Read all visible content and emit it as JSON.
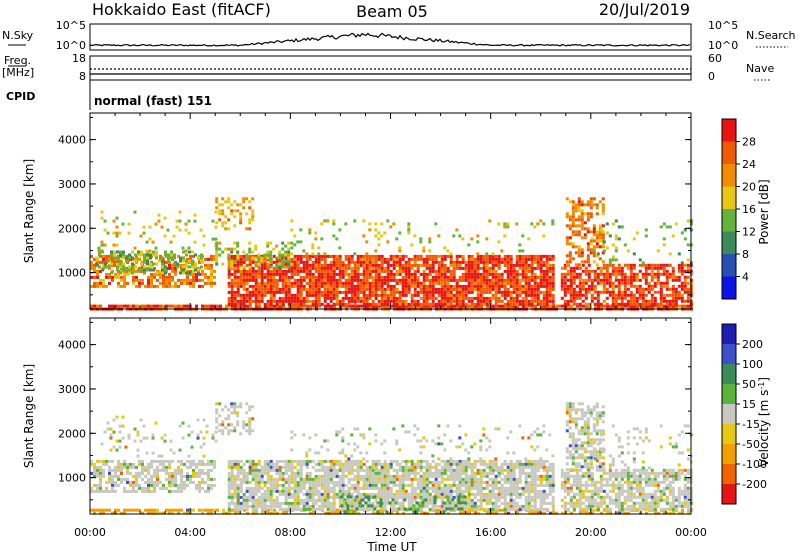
{
  "header": {
    "station": "Hokkaido East (fitACF)",
    "beam": "Beam 05",
    "date": "20/Jul/2019"
  },
  "noise_panel": {
    "left_label": "N.Sky",
    "right_label": "N.Search",
    "left_ticks": [
      "10^5",
      "10^0"
    ],
    "right_ticks": [
      "10^5",
      "10^0"
    ]
  },
  "freq_panel": {
    "left_label_line1": "Freq.",
    "left_label_line2": "[MHz]",
    "right_label": "Nave",
    "left_ticks": [
      "18",
      "8"
    ],
    "right_ticks": [
      "60",
      "0"
    ]
  },
  "cpid_panel": {
    "label": "CPID",
    "mode_text": "normal (fast) 151"
  },
  "x_axis": {
    "title": "Time UT",
    "ticks": [
      "00:00",
      "04:00",
      "08:00",
      "12:00",
      "16:00",
      "20:00",
      "00:00"
    ]
  },
  "chart_data": [
    {
      "type": "heatmap",
      "name": "power",
      "ylabel": "Slant Range [km]",
      "yticks": [
        "1000",
        "2000",
        "3000",
        "4000"
      ],
      "ylim": [
        180,
        4600
      ],
      "xlim": [
        0,
        24
      ],
      "colorbar_title": "Power [dB]",
      "colorbar_ticks": [
        "4",
        "8",
        "12",
        "16",
        "20",
        "24",
        "28"
      ],
      "colorbar_colors": [
        "#0a14e6",
        "#2850b4",
        "#3c8c5a",
        "#64b43c",
        "#e6c814",
        "#f08c00",
        "#f05a00",
        "#e61414"
      ],
      "regions": [
        {
          "t0": 0.0,
          "t1": 24.0,
          "r0": 180,
          "r1": 280,
          "v": 28,
          "d": 0.9
        },
        {
          "t0": 0.0,
          "t1": 5.0,
          "r0": 700,
          "r1": 1400,
          "v": 24,
          "d": 0.6
        },
        {
          "t0": 0.2,
          "t1": 4.5,
          "r0": 1000,
          "r1": 1500,
          "v": 14,
          "d": 0.5
        },
        {
          "t0": 0.3,
          "t1": 5.0,
          "r0": 1500,
          "r1": 2400,
          "v": 17,
          "d": 0.12
        },
        {
          "t0": 5.5,
          "t1": 18.5,
          "r0": 250,
          "r1": 1400,
          "v": 28,
          "d": 0.85
        },
        {
          "t0": 5.0,
          "t1": 8.0,
          "r0": 1100,
          "r1": 1700,
          "v": 16,
          "d": 0.35
        },
        {
          "t0": 8.0,
          "t1": 18.5,
          "r0": 1400,
          "r1": 2200,
          "v": 17,
          "d": 0.12
        },
        {
          "t0": 5.0,
          "t1": 6.5,
          "r0": 2000,
          "r1": 2700,
          "v": 21,
          "d": 0.4
        },
        {
          "t0": 18.8,
          "t1": 24.0,
          "r0": 300,
          "r1": 1200,
          "v": 28,
          "d": 0.7
        },
        {
          "t0": 19.0,
          "t1": 20.5,
          "r0": 1200,
          "r1": 2700,
          "v": 24,
          "d": 0.55
        },
        {
          "t0": 20.0,
          "t1": 24.0,
          "r0": 1200,
          "r1": 2200,
          "v": 14,
          "d": 0.12
        }
      ]
    },
    {
      "type": "heatmap",
      "name": "velocity",
      "ylabel": "Slant Range [km]",
      "yticks": [
        "1000",
        "2000",
        "3000",
        "4000"
      ],
      "ylim": [
        180,
        4600
      ],
      "xlim": [
        0,
        24
      ],
      "colorbar_title": "Velocity [m s^-1]",
      "colorbar_ticks": [
        "200",
        "100",
        "50",
        "15",
        "-15",
        "-50",
        "-100",
        "-200"
      ],
      "colorbar_colors": [
        "#1e1eb4",
        "#3c50c8",
        "#3c8c5a",
        "#5ab43c",
        "#c8c8c0",
        "#e6c814",
        "#f0a000",
        "#f06400",
        "#e61414"
      ],
      "regions": [
        {
          "t0": 0.0,
          "t1": 24.0,
          "r0": 180,
          "r1": 300,
          "v": -60,
          "d": 0.6
        },
        {
          "t0": 0.0,
          "t1": 5.0,
          "r0": 700,
          "r1": 1400,
          "v": 0,
          "d": 0.6
        },
        {
          "t0": 0.3,
          "t1": 5.0,
          "r0": 1500,
          "r1": 2400,
          "v": 0,
          "d": 0.12
        },
        {
          "t0": 5.5,
          "t1": 18.5,
          "r0": 250,
          "r1": 1400,
          "v": 0,
          "d": 0.8
        },
        {
          "t0": 10.0,
          "t1": 15.0,
          "r0": 250,
          "r1": 600,
          "v": 60,
          "d": 0.3
        },
        {
          "t0": 8.0,
          "t1": 18.5,
          "r0": 1400,
          "r1": 2200,
          "v": 0,
          "d": 0.12
        },
        {
          "t0": 5.0,
          "t1": 6.5,
          "r0": 2000,
          "r1": 2700,
          "v": 0,
          "d": 0.4
        },
        {
          "t0": 18.8,
          "t1": 24.0,
          "r0": 300,
          "r1": 1200,
          "v": 0,
          "d": 0.7
        },
        {
          "t0": 19.0,
          "t1": 20.5,
          "r0": 1200,
          "r1": 2700,
          "v": 0,
          "d": 0.55
        },
        {
          "t0": 20.0,
          "t1": 24.0,
          "r0": 1200,
          "r1": 2200,
          "v": 0,
          "d": 0.12
        }
      ]
    }
  ]
}
